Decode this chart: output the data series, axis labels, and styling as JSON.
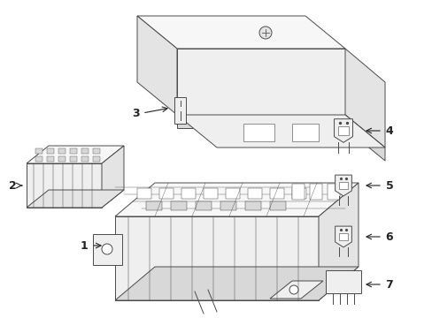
{
  "bg_color": "#ffffff",
  "line_color": "#4a4a4a",
  "line_color_light": "#888888",
  "fill_white": "#ffffff",
  "fill_lightest": "#f7f7f7",
  "fill_light": "#efefef",
  "fill_mid": "#e4e4e4",
  "fill_dark": "#d8d8d8",
  "fig_width": 4.89,
  "fig_height": 3.6,
  "dpi": 100
}
